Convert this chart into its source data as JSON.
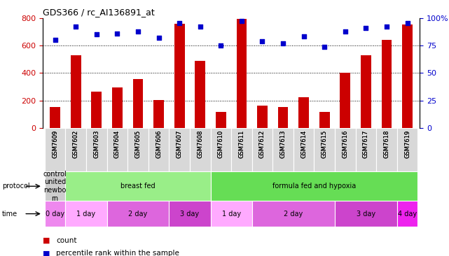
{
  "title": "GDS366 / rc_AI136891_at",
  "samples": [
    "GSM7609",
    "GSM7602",
    "GSM7603",
    "GSM7604",
    "GSM7605",
    "GSM7606",
    "GSM7607",
    "GSM7608",
    "GSM7610",
    "GSM7611",
    "GSM7612",
    "GSM7613",
    "GSM7614",
    "GSM7615",
    "GSM7616",
    "GSM7617",
    "GSM7618",
    "GSM7619"
  ],
  "counts": [
    150,
    530,
    265,
    295,
    355,
    205,
    755,
    490,
    115,
    795,
    165,
    155,
    225,
    115,
    400,
    530,
    640,
    750
  ],
  "percentiles": [
    80,
    92,
    85,
    86,
    88,
    82,
    95,
    92,
    75,
    97,
    79,
    77,
    83,
    74,
    88,
    91,
    92,
    95
  ],
  "ylim_left": [
    0,
    800
  ],
  "ylim_right": [
    0,
    100
  ],
  "yticks_left": [
    0,
    200,
    400,
    600,
    800
  ],
  "yticks_right": [
    0,
    25,
    50,
    75,
    100
  ],
  "bar_color": "#cc0000",
  "dot_color": "#0000cc",
  "protocol_row": {
    "label": "protocol",
    "groups": [
      {
        "text": "control\nunited\nnewbo\nrn",
        "start": 0,
        "end": 1,
        "color": "#cccccc"
      },
      {
        "text": "breast fed",
        "start": 1,
        "end": 8,
        "color": "#99ee88"
      },
      {
        "text": "formula fed and hypoxia",
        "start": 8,
        "end": 18,
        "color": "#66dd55"
      }
    ]
  },
  "time_row": {
    "label": "time",
    "groups": [
      {
        "text": "0 day",
        "start": 0,
        "end": 1,
        "color": "#ee88ee"
      },
      {
        "text": "1 day",
        "start": 1,
        "end": 3,
        "color": "#ffaaff"
      },
      {
        "text": "2 day",
        "start": 3,
        "end": 6,
        "color": "#dd66dd"
      },
      {
        "text": "3 day",
        "start": 6,
        "end": 8,
        "color": "#cc44cc"
      },
      {
        "text": "1 day",
        "start": 8,
        "end": 10,
        "color": "#ffaaff"
      },
      {
        "text": "2 day",
        "start": 10,
        "end": 14,
        "color": "#dd66dd"
      },
      {
        "text": "3 day",
        "start": 14,
        "end": 17,
        "color": "#cc44cc"
      },
      {
        "text": "4 day",
        "start": 17,
        "end": 18,
        "color": "#ee22ee"
      }
    ]
  },
  "legend": [
    {
      "color": "#cc0000",
      "label": "count"
    },
    {
      "color": "#0000cc",
      "label": "percentile rank within the sample"
    }
  ],
  "bg_color": "#ffffff",
  "plot_bg_color": "#ffffff",
  "xtick_bg_color": "#d8d8d8"
}
